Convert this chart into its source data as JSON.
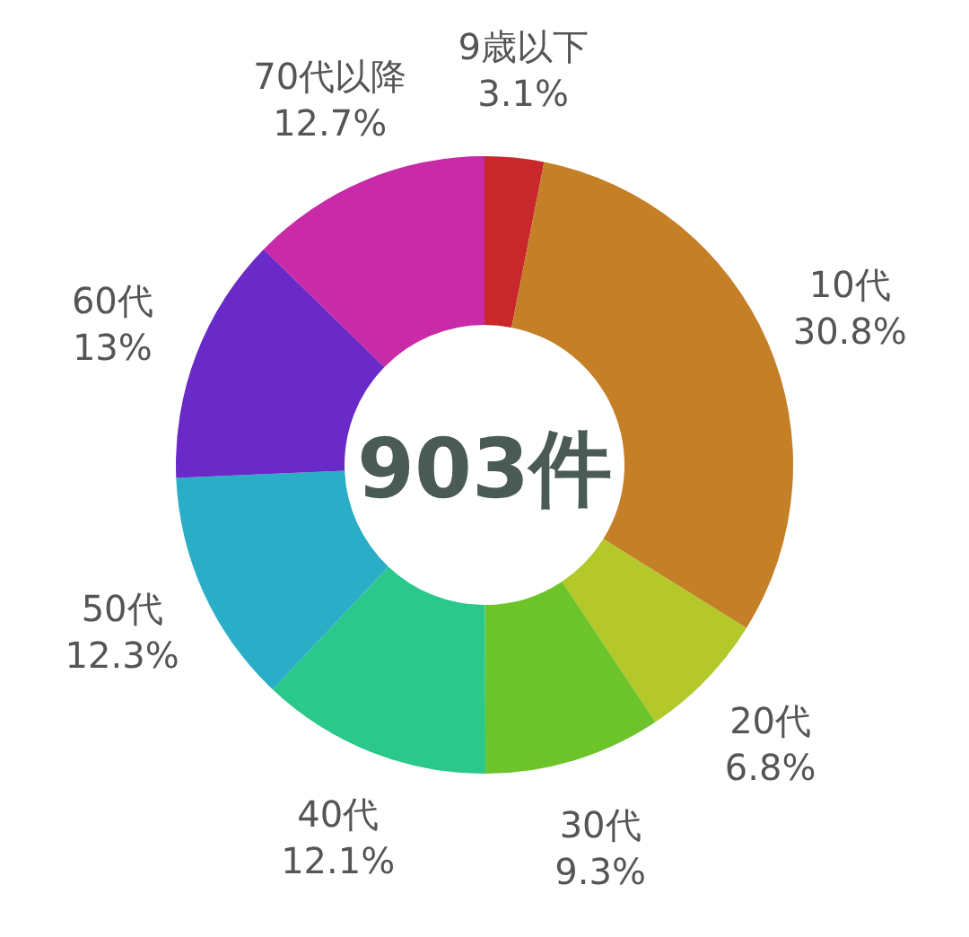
{
  "chart_data": {
    "type": "donut",
    "categories": [
      "9歳以下",
      "10代",
      "20代",
      "30代",
      "40代",
      "50代",
      "60代",
      "70代以降"
    ],
    "values": [
      3.1,
      30.8,
      6.8,
      9.3,
      12.1,
      12.3,
      13,
      12.7
    ],
    "value_labels": [
      "3.1%",
      "30.8%",
      "6.8%",
      "9.3%",
      "12.1%",
      "12.3%",
      "13%",
      "12.7%"
    ],
    "colors": [
      "#c8282a",
      "#c47f27",
      "#b5c82a",
      "#6cc42a",
      "#2ac88a",
      "#2aaec8",
      "#6a2ac8",
      "#c82aa8"
    ],
    "annotations": [
      "903件"
    ]
  }
}
